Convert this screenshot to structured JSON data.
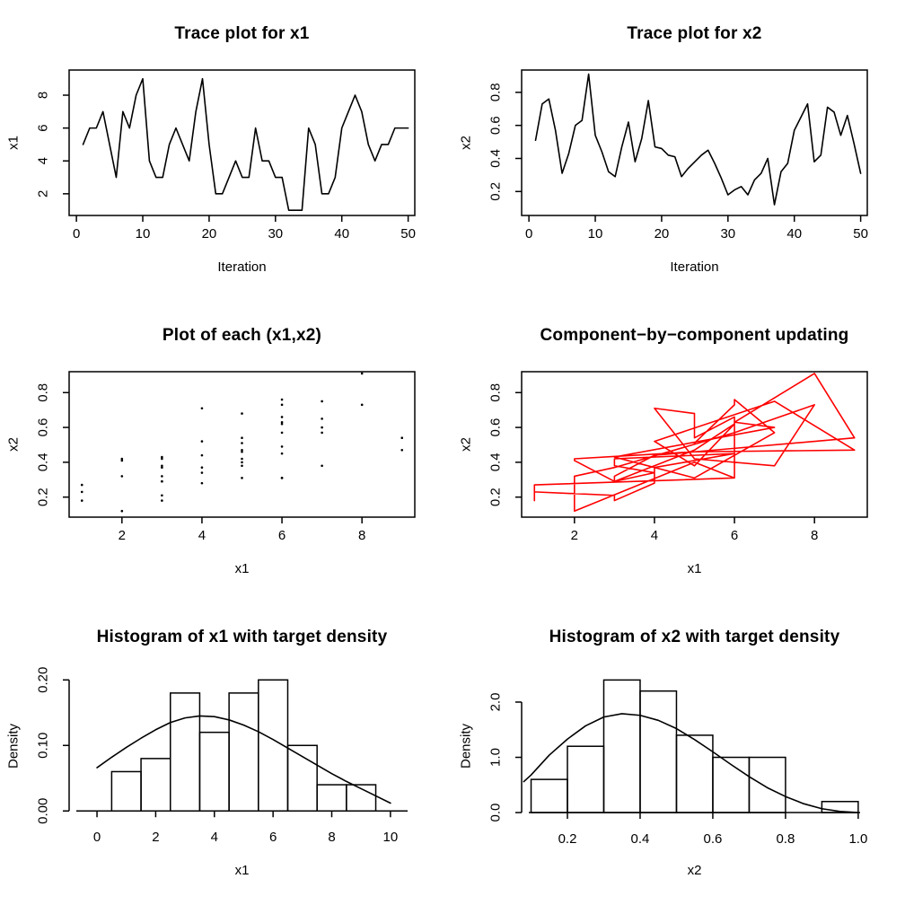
{
  "figure": {
    "background": "#ffffff",
    "axis_color": "#000000",
    "accent_red": "#ff0000"
  },
  "samples": {
    "x1": [
      5,
      6,
      6,
      7,
      5,
      3,
      7,
      6,
      8,
      9,
      4,
      3,
      3,
      5,
      6,
      5,
      4,
      7,
      9,
      5,
      2,
      2,
      3,
      4,
      3,
      3,
      6,
      4,
      4,
      3,
      3,
      1,
      1,
      1,
      6,
      5,
      2,
      2,
      3,
      6,
      7,
      8,
      7,
      5,
      4,
      5,
      5,
      6,
      6,
      6
    ],
    "x2": [
      0.51,
      0.73,
      0.76,
      0.57,
      0.31,
      0.43,
      0.6,
      0.63,
      0.91,
      0.54,
      0.44,
      0.32,
      0.29,
      0.47,
      0.62,
      0.38,
      0.52,
      0.75,
      0.47,
      0.46,
      0.42,
      0.41,
      0.29,
      0.34,
      0.38,
      0.42,
      0.45,
      0.37,
      0.28,
      0.18,
      0.21,
      0.23,
      0.18,
      0.27,
      0.31,
      0.4,
      0.12,
      0.32,
      0.37,
      0.57,
      0.65,
      0.73,
      0.38,
      0.42,
      0.71,
      0.68,
      0.54,
      0.66,
      0.49,
      0.31
    ]
  },
  "chart_data": [
    {
      "id": "trace-x1",
      "type": "line",
      "title": "Trace plot for x1",
      "xlabel": "Iteration",
      "ylabel": "x1",
      "series_x": "index",
      "series_y": "x1",
      "color": "#000000",
      "xrange": [
        -1.1,
        51.0
      ],
      "yrange": [
        0.68,
        9.53
      ],
      "xticks": [
        0,
        10,
        20,
        30,
        40,
        50
      ],
      "xtick_labels": [
        "0",
        "10",
        "20",
        "30",
        "40",
        "50"
      ],
      "yticks": [
        2,
        4,
        6,
        8
      ],
      "ytick_labels": [
        "2",
        "4",
        "6",
        "8"
      ],
      "grid": false,
      "legend": "none"
    },
    {
      "id": "trace-x2",
      "type": "line",
      "title": "Trace plot for x2",
      "xlabel": "Iteration",
      "ylabel": "x2",
      "series_x": "index",
      "series_y": "x2",
      "color": "#000000",
      "xrange": [
        -1.1,
        51.0
      ],
      "yrange": [
        0.055,
        0.935
      ],
      "xticks": [
        0,
        10,
        20,
        30,
        40,
        50
      ],
      "xtick_labels": [
        "0",
        "10",
        "20",
        "30",
        "40",
        "50"
      ],
      "yticks": [
        0.2,
        0.4,
        0.6,
        0.8
      ],
      "ytick_labels": [
        "0.2",
        "0.4",
        "0.6",
        "0.8"
      ],
      "grid": false,
      "legend": "none"
    },
    {
      "id": "scatter-x1-x2",
      "type": "scatter",
      "title": "Plot of each (x1,x2)",
      "xlabel": "x1",
      "ylabel": "x2",
      "series_x": "x1",
      "series_y": "x2",
      "color": "#000000",
      "xrange": [
        0.68,
        9.32
      ],
      "yrange": [
        0.085,
        0.92
      ],
      "xticks": [
        2,
        4,
        6,
        8
      ],
      "xtick_labels": [
        "2",
        "4",
        "6",
        "8"
      ],
      "yticks": [
        0.2,
        0.4,
        0.6,
        0.8
      ],
      "ytick_labels": [
        "0.2",
        "0.4",
        "0.6",
        "0.8"
      ],
      "grid": false,
      "legend": "none"
    },
    {
      "id": "component-path",
      "type": "path",
      "title": "Component−by−component updating",
      "xlabel": "x1",
      "ylabel": "x2",
      "series_x": "x1",
      "series_y": "x2",
      "color": "#ff0000",
      "xrange": [
        0.68,
        9.32
      ],
      "yrange": [
        0.085,
        0.92
      ],
      "xticks": [
        2,
        4,
        6,
        8
      ],
      "xtick_labels": [
        "2",
        "4",
        "6",
        "8"
      ],
      "yticks": [
        0.2,
        0.4,
        0.6,
        0.8
      ],
      "ytick_labels": [
        "0.2",
        "0.4",
        "0.6",
        "0.8"
      ],
      "grid": false,
      "legend": "none"
    },
    {
      "id": "hist-x1",
      "type": "histogram",
      "title": "Histogram of x1 with target density",
      "xlabel": "x1",
      "ylabel": "Density",
      "color": "#000000",
      "bins": {
        "start": 0.5,
        "width": 1,
        "heights": [
          0.06,
          0.08,
          0.18,
          0.12,
          0.18,
          0.2,
          0.1,
          0.04,
          0.04
        ]
      },
      "curve": {
        "x": [
          0,
          0.5,
          1,
          1.5,
          2,
          2.5,
          3,
          3.5,
          4,
          4.5,
          5,
          5.5,
          6,
          6.5,
          7,
          7.5,
          8,
          8.5,
          9,
          9.5,
          10
        ],
        "y": [
          0.066,
          0.082,
          0.097,
          0.111,
          0.124,
          0.135,
          0.142,
          0.145,
          0.144,
          0.139,
          0.131,
          0.121,
          0.109,
          0.096,
          0.083,
          0.07,
          0.057,
          0.045,
          0.034,
          0.023,
          0.012
        ]
      },
      "xrange": [
        -0.95,
        10.83
      ],
      "yrange": [
        -0.012,
        0.21
      ],
      "xticks": [
        0,
        2,
        4,
        6,
        8,
        10
      ],
      "xtick_labels": [
        "0",
        "2",
        "4",
        "6",
        "8",
        "10"
      ],
      "yticks": [
        0,
        0.1,
        0.2
      ],
      "ytick_labels": [
        "0.00",
        "0.10",
        "0.20"
      ],
      "grid": false,
      "legend": "none"
    },
    {
      "id": "hist-x2",
      "type": "histogram",
      "title": "Histogram of x2 with target density",
      "xlabel": "x2",
      "ylabel": "Density",
      "color": "#000000",
      "bins": {
        "start": 0.1,
        "width": 0.1,
        "heights": [
          0.6,
          1.2,
          2.4,
          2.2,
          1.4,
          1.0,
          1.0,
          0,
          0.2
        ]
      },
      "curve": {
        "x": [
          0.08,
          0.1,
          0.15,
          0.2,
          0.25,
          0.3,
          0.35,
          0.4,
          0.45,
          0.5,
          0.55,
          0.6,
          0.65,
          0.7,
          0.75,
          0.8,
          0.85,
          0.9,
          0.95,
          1.0
        ],
        "y": [
          0.56,
          0.68,
          1.04,
          1.33,
          1.57,
          1.73,
          1.79,
          1.76,
          1.67,
          1.52,
          1.32,
          1.1,
          0.87,
          0.65,
          0.45,
          0.29,
          0.16,
          0.07,
          0.02,
          0.0
        ]
      },
      "xrange": [
        0.074,
        1.025
      ],
      "yrange": [
        -0.113,
        2.52
      ],
      "xticks": [
        0.2,
        0.4,
        0.6,
        0.8,
        1.0
      ],
      "xtick_labels": [
        "0.2",
        "0.4",
        "0.6",
        "0.8",
        "1.0"
      ],
      "yticks": [
        0,
        1,
        2
      ],
      "ytick_labels": [
        "0.0",
        "1.0",
        "2.0"
      ],
      "grid": false,
      "legend": "none"
    }
  ]
}
